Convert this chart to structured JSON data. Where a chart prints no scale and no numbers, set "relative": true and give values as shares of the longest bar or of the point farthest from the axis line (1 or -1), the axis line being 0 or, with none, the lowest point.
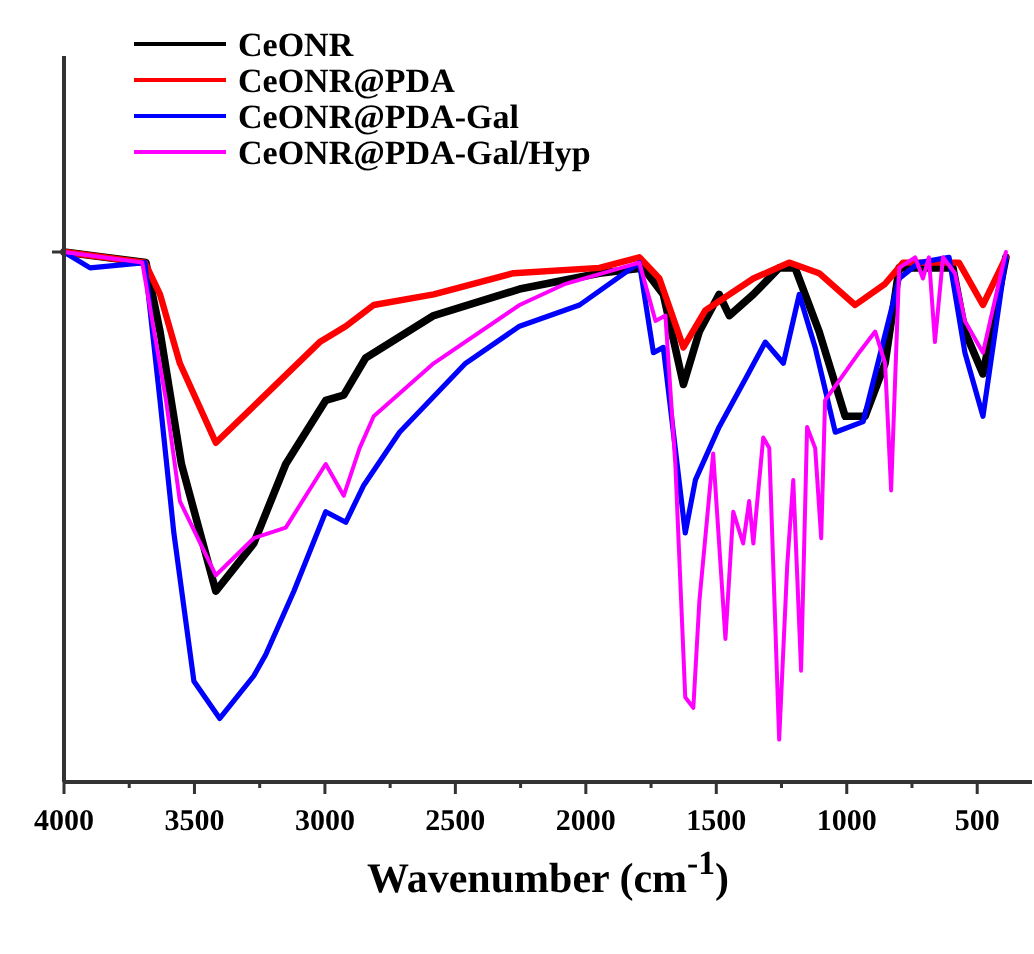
{
  "chart_data": {
    "type": "line",
    "relative": true,
    "xlabel": "Wavenumber (cm$^{-1}$)",
    "xlim": [
      4000,
      290
    ],
    "xticks": [
      4000,
      {
        "value": 3750,
        "label": null
      },
      3500,
      {
        "value": 3250,
        "label": null
      },
      3000,
      {
        "value": 2750,
        "label": null
      },
      2500,
      {
        "value": 2250,
        "label": null
      },
      2000,
      {
        "value": 1750,
        "label": null
      },
      1500,
      {
        "value": 1250,
        "label": null
      },
      1000,
      {
        "value": 750,
        "label": null
      },
      500
    ],
    "legend": "top left",
    "grid": false,
    "series": [
      {
        "name": "CeONR",
        "color": "#000000",
        "x": [
          4000,
          3686,
          3632,
          3550,
          3418,
          3273,
          3150,
          2997,
          2928,
          2844,
          2583,
          2254,
          1948,
          1780,
          1703,
          1626,
          1565,
          1489,
          1450,
          1358,
          1259,
          1198,
          1106,
          1006,
          930,
          853,
          799,
          593,
          547,
          478,
          390
        ],
        "values": [
          1.0,
          0.98,
          0.85,
          0.6,
          0.36,
          0.45,
          0.6,
          0.72,
          0.73,
          0.8,
          0.88,
          0.93,
          0.96,
          0.97,
          0.92,
          0.75,
          0.85,
          0.92,
          0.88,
          0.92,
          0.97,
          0.97,
          0.85,
          0.69,
          0.69,
          0.79,
          0.97,
          0.97,
          0.85,
          0.77,
          0.99
        ]
      },
      {
        "name": "CeONR@PDA",
        "color": "#ff0000",
        "x": [
          4000,
          3690,
          3632,
          3556,
          3418,
          3250,
          3020,
          2920,
          2813,
          2583,
          2277,
          1948,
          1795,
          1718,
          1626,
          1542,
          1358,
          1221,
          1106,
          968,
          853,
          784,
          570,
          478,
          390
        ],
        "values": [
          1.0,
          0.98,
          0.92,
          0.79,
          0.64,
          0.72,
          0.83,
          0.86,
          0.9,
          0.92,
          0.96,
          0.97,
          0.99,
          0.95,
          0.82,
          0.89,
          0.95,
          0.98,
          0.96,
          0.9,
          0.94,
          0.98,
          0.98,
          0.9,
          0.99
        ]
      },
      {
        "name": "CeONR@PDA-Gal",
        "color": "#0000ff",
        "x": [
          4000,
          3900,
          3690,
          3632,
          3579,
          3502,
          3403,
          3273,
          3227,
          3119,
          2997,
          2920,
          2851,
          2714,
          2461,
          2254,
          2024,
          1795,
          1741,
          1703,
          1619,
          1580,
          1489,
          1389,
          1312,
          1243,
          1182,
          1121,
          1044,
          937,
          799,
          723,
          608,
          547,
          478,
          390
        ],
        "values": [
          1.0,
          0.97,
          0.98,
          0.72,
          0.47,
          0.19,
          0.12,
          0.2,
          0.24,
          0.36,
          0.51,
          0.49,
          0.56,
          0.66,
          0.79,
          0.86,
          0.9,
          0.98,
          0.81,
          0.82,
          0.47,
          0.57,
          0.67,
          0.76,
          0.83,
          0.79,
          0.92,
          0.82,
          0.66,
          0.68,
          0.95,
          0.98,
          0.99,
          0.81,
          0.69,
          0.99
        ]
      },
      {
        "name": "CeONR@PDA-Gal/Hyp",
        "color": "#ff00ff",
        "x": [
          4000,
          3700,
          3609,
          3556,
          3418,
          3273,
          3150,
          2997,
          2928,
          2867,
          2813,
          2583,
          2254,
          2078,
          1795,
          1733,
          1695,
          1657,
          1619,
          1588,
          1565,
          1512,
          1465,
          1435,
          1397,
          1374,
          1358,
          1320,
          1297,
          1259,
          1228,
          1205,
          1175,
          1152,
          1121,
          1098,
          1083,
          953,
          891,
          853,
          830,
          799,
          738,
          708,
          685,
          662,
          631,
          585,
          547,
          478,
          390
        ],
        "values": [
          1.0,
          0.98,
          0.72,
          0.53,
          0.39,
          0.46,
          0.48,
          0.6,
          0.54,
          0.63,
          0.69,
          0.79,
          0.9,
          0.94,
          0.98,
          0.87,
          0.88,
          0.6,
          0.16,
          0.14,
          0.34,
          0.62,
          0.27,
          0.51,
          0.45,
          0.53,
          0.45,
          0.65,
          0.63,
          0.08,
          0.41,
          0.57,
          0.21,
          0.67,
          0.63,
          0.46,
          0.72,
          0.81,
          0.85,
          0.79,
          0.55,
          0.97,
          0.99,
          0.95,
          0.99,
          0.83,
          0.99,
          0.96,
          0.87,
          0.81,
          1.0
        ]
      }
    ]
  }
}
